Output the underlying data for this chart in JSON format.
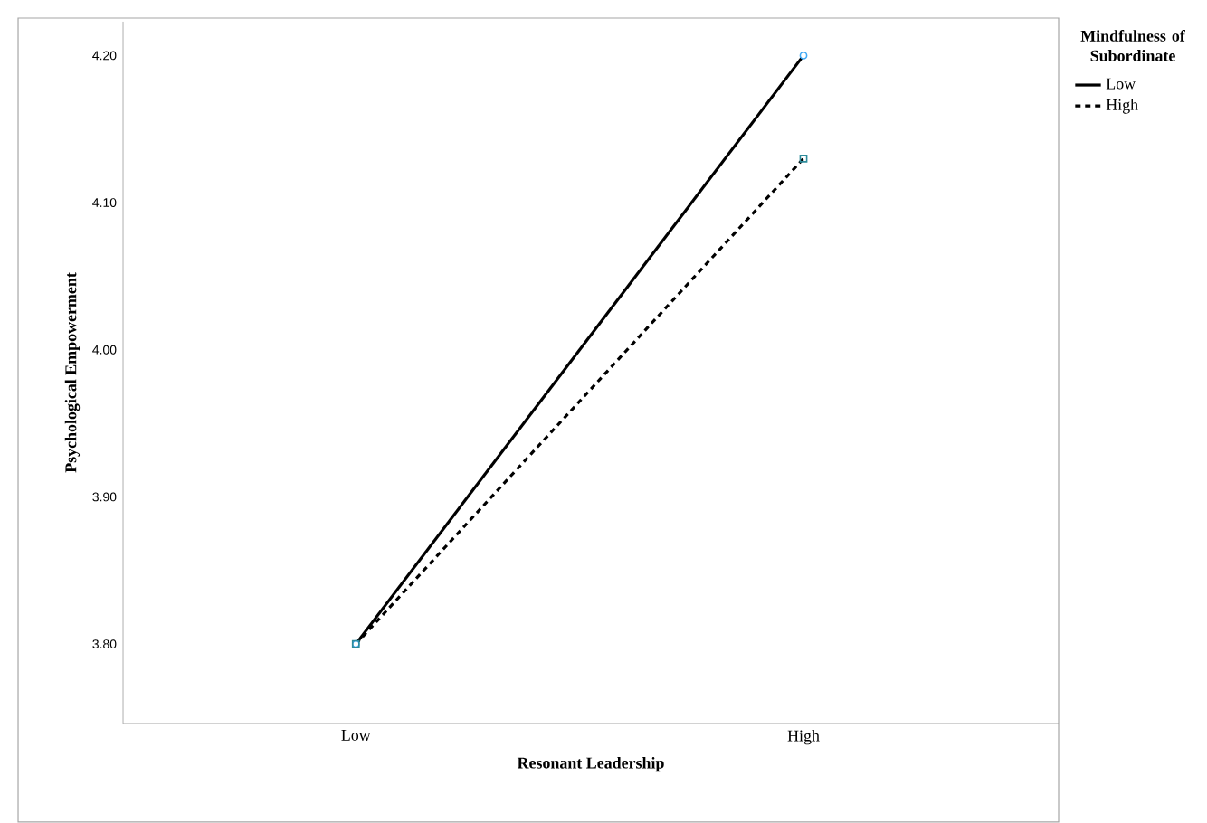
{
  "chart_data": {
    "type": "line",
    "xlabel": "Resonant Leadership",
    "ylabel": "Psychological Empowerment",
    "legend_title": "Mindfulness of Subordinate",
    "categories": [
      "Low",
      "High"
    ],
    "series": [
      {
        "name": "Low",
        "color": "#000000",
        "values": [
          3.8,
          4.2
        ],
        "line_style": "solid",
        "marker": "circle"
      },
      {
        "name": "High",
        "color": "#000000",
        "values": [
          3.8,
          4.13
        ],
        "line_style": "dashed",
        "marker": "square"
      }
    ],
    "ylim": [
      3.746,
      4.223
    ],
    "yticks": [
      {
        "value": 3.8,
        "label": "3.80"
      },
      {
        "value": 3.9,
        "label": "3.90"
      },
      {
        "value": 4.0,
        "label": "4.00"
      },
      {
        "value": 4.1,
        "label": "4.10"
      },
      {
        "value": 4.2,
        "label": "4.20"
      }
    ],
    "grid": false,
    "legend": "right"
  }
}
